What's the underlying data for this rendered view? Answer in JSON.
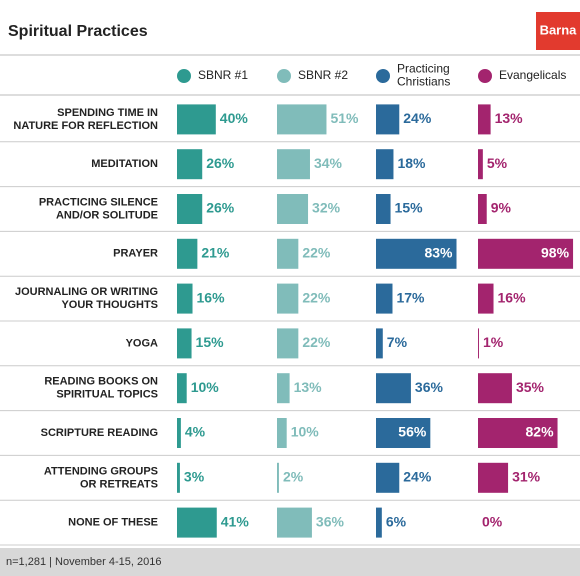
{
  "chart_data": {
    "type": "bar",
    "title": "Spiritual Practices",
    "logo": "Barna",
    "footer": "n=1,281  |  November 4-15, 2016",
    "categories": [
      "SPENDING TIME IN\nNATURE FOR REFLECTION",
      "MEDITATION",
      "PRACTICING SILENCE\nAND/OR SOLITUDE",
      "PRAYER",
      "JOURNALING OR WRITING\nYOUR THOUGHTS",
      "YOGA",
      "READING BOOKS ON\nSPIRITUAL TOPICS",
      "SCRIPTURE READING",
      "ATTENDING GROUPS\nOR RETREATS",
      "NONE OF THESE"
    ],
    "series": [
      {
        "name": "SBNR #1",
        "color": "#2e9a90",
        "values": [
          40,
          26,
          26,
          21,
          16,
          15,
          10,
          4,
          3,
          41
        ],
        "value_labels": [
          "40%",
          "26%",
          "26%",
          "21%",
          "16%",
          "15%",
          "10%",
          "4%",
          "3%",
          "41%"
        ]
      },
      {
        "name": "SBNR #2",
        "color": "#80bcba",
        "values": [
          51,
          34,
          32,
          22,
          22,
          22,
          13,
          10,
          2,
          36
        ],
        "value_labels": [
          "51%",
          "34%",
          "32%",
          "22%",
          "22%",
          "22%",
          "13%",
          "10%",
          "2%",
          "36%"
        ]
      },
      {
        "name": "Practicing\nChristians",
        "color": "#2b6a9b",
        "values": [
          24,
          18,
          15,
          83,
          17,
          7,
          36,
          56,
          24,
          6
        ],
        "value_labels": [
          "24%",
          "18%",
          "15%",
          "83%",
          "17%",
          "7%",
          "36%",
          "56%",
          "24%",
          "6%"
        ]
      },
      {
        "name": "Evangelicals",
        "color": "#a3246e",
        "values": [
          13,
          5,
          9,
          98,
          16,
          1,
          35,
          82,
          31,
          0
        ],
        "value_labels": [
          "13%",
          "5%",
          "9%",
          "98%",
          "16%",
          "1%",
          "35%",
          "82%",
          "31%",
          "0%"
        ]
      }
    ]
  }
}
